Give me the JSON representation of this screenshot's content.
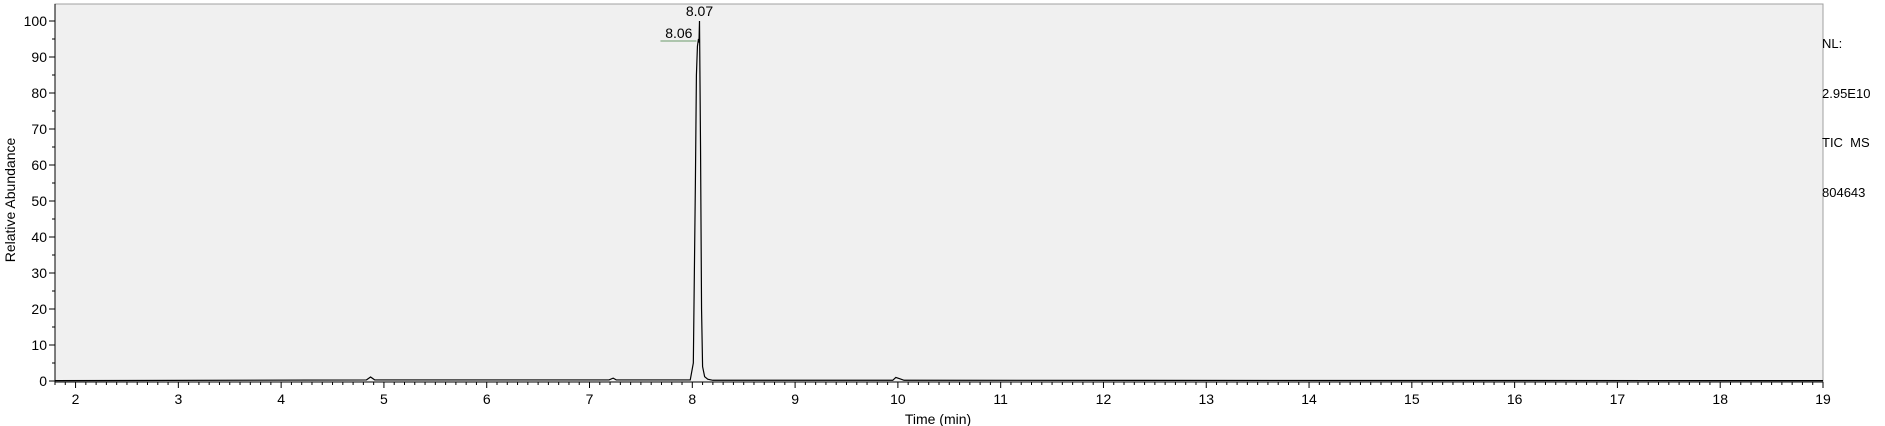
{
  "chart_data": {
    "type": "line",
    "title": "",
    "xlabel": "Time (min)",
    "ylabel": "Relative Abundance",
    "xlim": [
      1.8,
      19.0
    ],
    "ylim": [
      0,
      100
    ],
    "xticks": [
      2,
      3,
      4,
      5,
      6,
      7,
      8,
      9,
      10,
      11,
      12,
      13,
      14,
      15,
      16,
      17,
      18,
      19
    ],
    "yticks": [
      0,
      10,
      20,
      30,
      40,
      50,
      60,
      70,
      80,
      90,
      100
    ],
    "grid": false,
    "background": "#f0f0f0",
    "line_color": "#000000",
    "peak_labels": [
      {
        "text": "8.07",
        "x": 8.07,
        "y": 100
      },
      {
        "text": "8.06",
        "x": 8.06,
        "y": 95
      }
    ],
    "series": [
      {
        "x": [
          1.8,
          4.83,
          4.87,
          4.91,
          7.19,
          7.23,
          7.26,
          7.98,
          8.01,
          8.03,
          8.04,
          8.05,
          8.06,
          8.065,
          8.07,
          8.08,
          8.09,
          8.1,
          8.12,
          8.15,
          8.2,
          9.95,
          9.98,
          10.02,
          10.06,
          19.0
        ],
        "y": [
          0.1,
          0.3,
          1.1,
          0.3,
          0.3,
          0.8,
          0.3,
          0.3,
          5,
          55,
          85,
          93,
          95,
          94,
          100,
          65,
          20,
          4,
          1.2,
          0.5,
          0.2,
          0.2,
          1.0,
          0.6,
          0.2,
          0.1
        ]
      }
    ]
  },
  "side_info": {
    "nl_label": "NL:",
    "nl_value": "2.95E10",
    "scan_filter": "TIC  MS",
    "file_id": "804643"
  }
}
